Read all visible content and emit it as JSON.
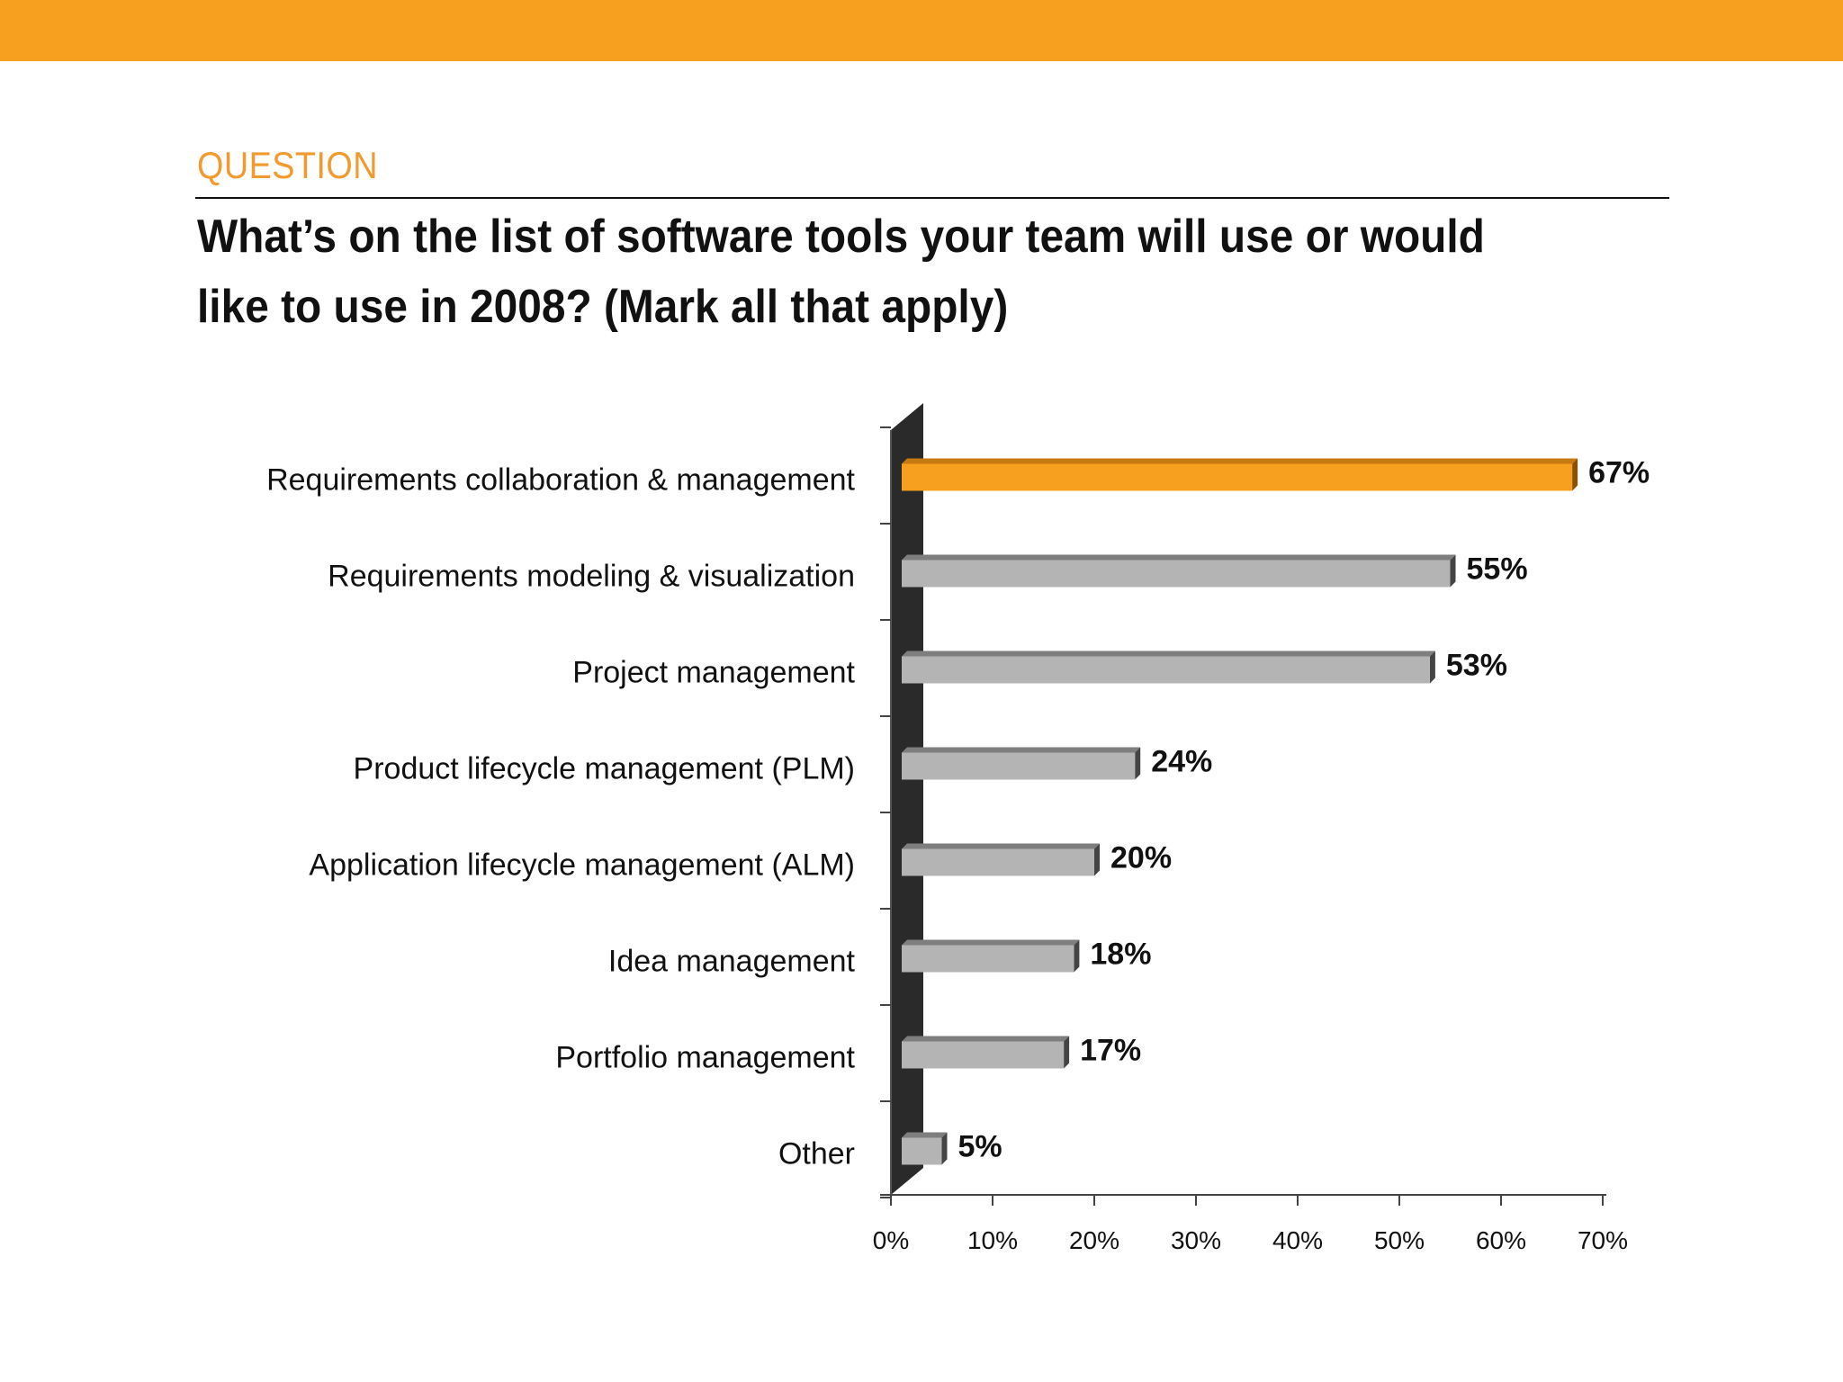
{
  "header": {
    "section_label": "QUESTION",
    "question": "What’s on the list of software tools your team will use or would like to use in 2008? (Mark all that apply)"
  },
  "colors": {
    "accent": "#F7A01F",
    "bar_gray": "#B4B4B4",
    "bar_gray_dark": "#7E7E7E",
    "wall": "#2A2A2A",
    "text": "#111111",
    "section_label": "#F29A2E"
  },
  "chart_data": {
    "type": "bar",
    "orientation": "horizontal",
    "title": "",
    "xlabel": "",
    "ylabel": "",
    "categories": [
      "Requirements collaboration & management",
      "Requirements modeling & visualization",
      "Project management",
      "Product lifecycle management (PLM)",
      "Application lifecycle management (ALM)",
      "Idea management",
      "Portfolio management",
      "Other"
    ],
    "values": [
      67,
      55,
      53,
      24,
      20,
      18,
      17,
      5
    ],
    "value_labels": [
      "67%",
      "55%",
      "53%",
      "24%",
      "20%",
      "18%",
      "17%",
      "5%"
    ],
    "highlighted_index": 0,
    "xlim": [
      0,
      70
    ],
    "xticks": [
      0,
      10,
      20,
      30,
      40,
      50,
      60,
      70
    ],
    "xtick_labels": [
      "0%",
      "10%",
      "20%",
      "30%",
      "40%",
      "50%",
      "60%",
      "70%"
    ],
    "grid": false,
    "legend": "none"
  }
}
